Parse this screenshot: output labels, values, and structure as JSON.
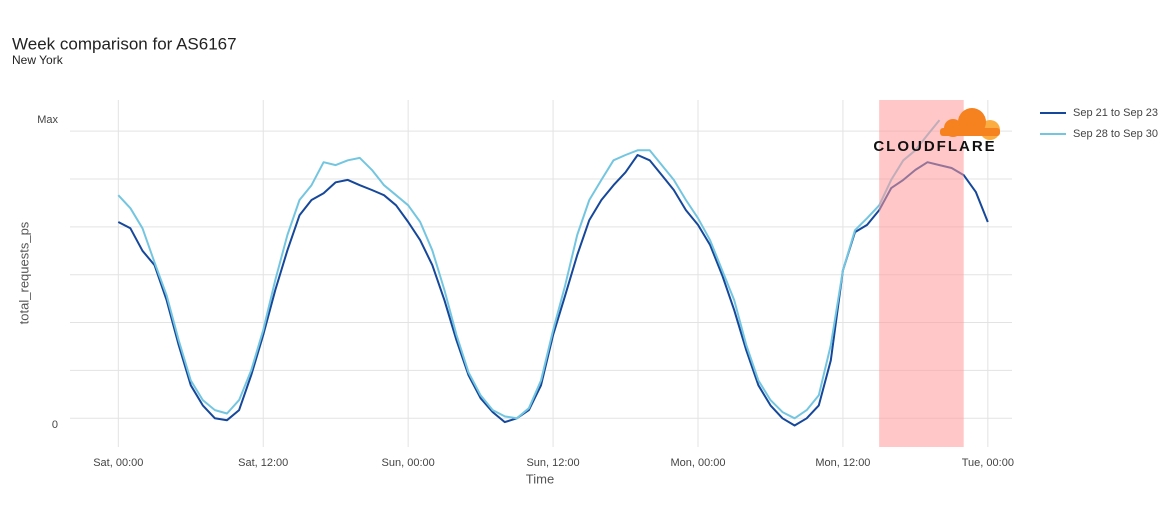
{
  "chart_data": {
    "type": "line",
    "title": "Week comparison for AS6167",
    "subtitle": "New York",
    "x_label": "Time",
    "y_label": "total_requests_ps",
    "logo_text": "CLOUDFLARE",
    "x": [
      0,
      1,
      2,
      3,
      4,
      5,
      6,
      7,
      8,
      9,
      10,
      11,
      12,
      13,
      14,
      15,
      16,
      17,
      18,
      19,
      20,
      21,
      22,
      23,
      24,
      25,
      26,
      27,
      28,
      29,
      30,
      31,
      32,
      33,
      34,
      35,
      36,
      37,
      38,
      39,
      40,
      41,
      42,
      43,
      44,
      45,
      46,
      47,
      48,
      49,
      50,
      51,
      52,
      53,
      54,
      55,
      56,
      57,
      58,
      59,
      60,
      61,
      62,
      63,
      64,
      65,
      66,
      67,
      68,
      69,
      70,
      71,
      72
    ],
    "series": [
      {
        "name": "Sep 21 to Sep 23",
        "color": "#15479b",
        "values": [
          4.1,
          3.97,
          3.5,
          3.2,
          2.47,
          1.53,
          0.69,
          0.27,
          0,
          -0.04,
          0.17,
          0.9,
          1.74,
          2.68,
          3.51,
          4.24,
          4.56,
          4.7,
          4.93,
          4.98,
          4.87,
          4.77,
          4.66,
          4.45,
          4.1,
          3.72,
          3.2,
          2.47,
          1.63,
          0.9,
          0.42,
          0.13,
          -0.08,
          0,
          0.17,
          0.69,
          1.74,
          2.57,
          3.41,
          4.14,
          4.56,
          4.87,
          5.14,
          5.5,
          5.39,
          5.08,
          4.77,
          4.35,
          4.04,
          3.62,
          2.99,
          2.26,
          1.42,
          0.69,
          0.27,
          0,
          -0.15,
          0,
          0.27,
          1.21,
          3.09,
          3.89,
          4.04,
          4.35,
          4.81,
          4.98,
          5.19,
          5.35,
          5.29,
          5.23,
          5.08,
          4.73,
          4.1
        ]
      },
      {
        "name": "Sep 28 to Sep 30",
        "color": "#74c6e0",
        "values": [
          4.66,
          4.39,
          3.97,
          3.26,
          2.57,
          1.63,
          0.79,
          0.38,
          0.17,
          0.1,
          0.38,
          1.0,
          1.84,
          2.89,
          3.83,
          4.56,
          4.87,
          5.35,
          5.29,
          5.39,
          5.44,
          5.19,
          4.87,
          4.66,
          4.45,
          4.1,
          3.51,
          2.68,
          1.74,
          0.96,
          0.48,
          0.17,
          0.04,
          0,
          0.21,
          0.79,
          1.84,
          2.78,
          3.83,
          4.56,
          4.98,
          5.39,
          5.5,
          5.6,
          5.6,
          5.29,
          4.98,
          4.56,
          4.18,
          3.72,
          3.09,
          2.47,
          1.53,
          0.79,
          0.38,
          0.13,
          0,
          0.17,
          0.48,
          1.53,
          3.09,
          3.93,
          4.18,
          4.45,
          4.98,
          5.39,
          5.6,
          5.92,
          6.23,
          null,
          null,
          null,
          null
        ]
      }
    ],
    "xlim": [
      -4,
      74
    ],
    "xticks": [
      {
        "value": 0,
        "label": "Sat, 00:00"
      },
      {
        "value": 12,
        "label": "Sat, 12:00"
      },
      {
        "value": 24,
        "label": "Sun, 00:00"
      },
      {
        "value": 36,
        "label": "Sun, 12:00"
      },
      {
        "value": 48,
        "label": "Mon, 00:00"
      },
      {
        "value": 60,
        "label": "Mon, 12:00"
      },
      {
        "value": 72,
        "label": "Tue, 00:00"
      }
    ],
    "ylim": [
      -0.6,
      6.65
    ],
    "yticks": [
      0,
      {
        "value": 6,
        "label": "Max"
      }
    ],
    "minor_yticks": [
      1,
      2,
      3,
      4,
      5
    ],
    "grid": true,
    "legend": "right",
    "highlight": {
      "x0": 63,
      "x1": 70,
      "color": "#ff9999"
    }
  }
}
